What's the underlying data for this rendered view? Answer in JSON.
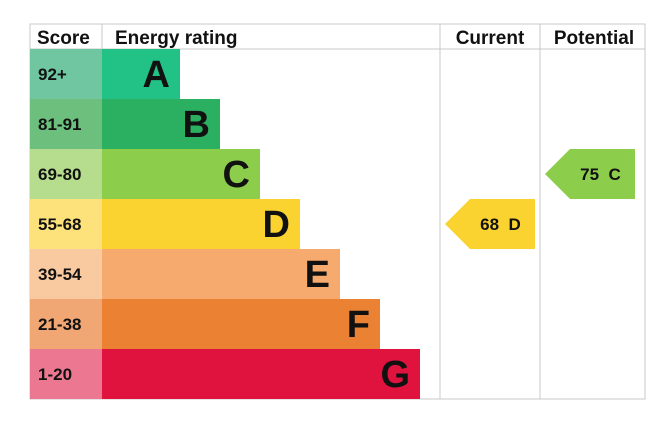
{
  "chart_data": {
    "type": "bar",
    "headers": {
      "score": "Score",
      "rating": "Energy rating",
      "current": "Current",
      "potential": "Potential"
    },
    "bands": [
      {
        "letter": "A",
        "range": "92+",
        "bar_color": "#22c286",
        "score_color": "#6fc6a0"
      },
      {
        "letter": "B",
        "range": "81-91",
        "bar_color": "#2bb061",
        "score_color": "#6cbf7d"
      },
      {
        "letter": "C",
        "range": "69-80",
        "bar_color": "#8dcd4c",
        "score_color": "#b6dc8d"
      },
      {
        "letter": "D",
        "range": "55-68",
        "bar_color": "#fbd330",
        "score_color": "#fde17a"
      },
      {
        "letter": "E",
        "range": "39-54",
        "bar_color": "#f6aa6d",
        "score_color": "#f9c9a0"
      },
      {
        "letter": "F",
        "range": "21-38",
        "bar_color": "#ea8133",
        "score_color": "#f0a773"
      },
      {
        "letter": "G",
        "range": "1-20",
        "bar_color": "#e0133f",
        "score_color": "#ec7790"
      }
    ],
    "current": {
      "value": 68,
      "letter": "D",
      "label": "68  D",
      "color": "#fbd330"
    },
    "potential": {
      "value": 75,
      "letter": "C",
      "label": "75  C",
      "color": "#8dcd4c"
    }
  }
}
